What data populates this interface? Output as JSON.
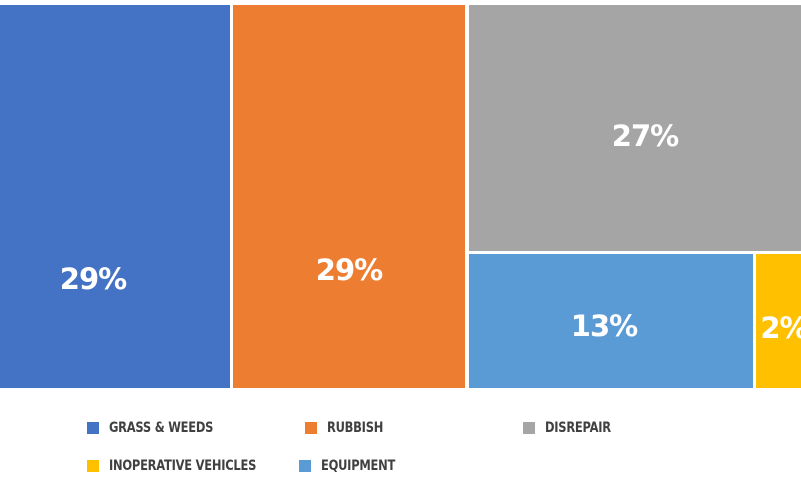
{
  "chart_data": {
    "type": "treemap",
    "title": "",
    "legend_position": "bottom",
    "series": [
      {
        "name": "GRASS & WEEDS",
        "value": 29,
        "label": "29%",
        "color": "#4472C4"
      },
      {
        "name": "RUBBISH",
        "value": 29,
        "label": "29%",
        "color": "#ED7D31"
      },
      {
        "name": "DISREPAIR",
        "value": 27,
        "label": "27%",
        "color": "#A5A5A5"
      },
      {
        "name": "EQUIPMENT",
        "value": 13,
        "label": "13%",
        "color": "#5B9BD5"
      },
      {
        "name": "INOPERATIVE VEHICLES",
        "value": 2,
        "label": "2%",
        "color": "#FFC000"
      }
    ],
    "legend": [
      "GRASS & WEEDS",
      "RUBBISH",
      "DISREPAIR",
      "INOPERATIVE VEHICLES",
      "EQUIPMENT"
    ]
  }
}
